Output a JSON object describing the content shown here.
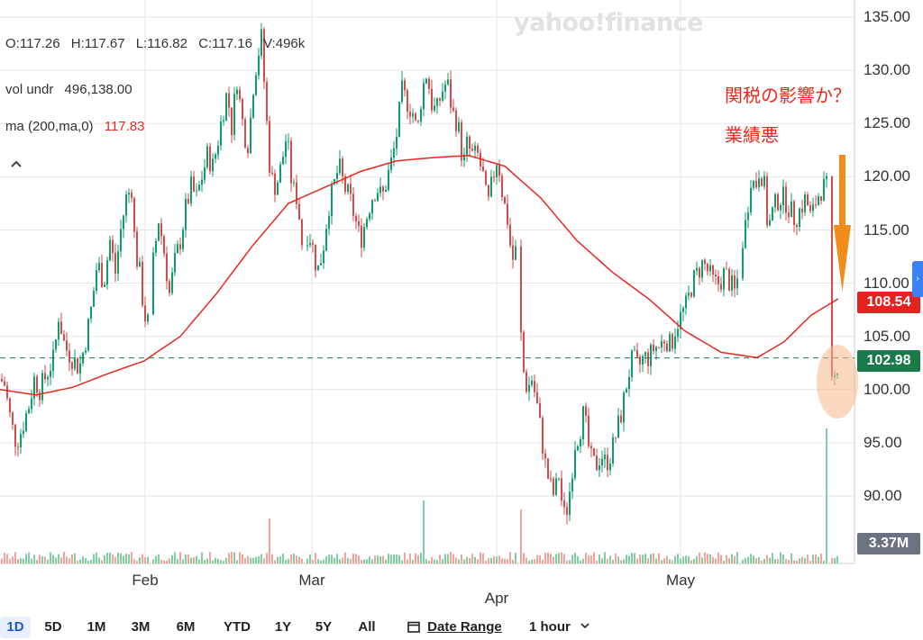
{
  "chart_data": {
    "type": "candlestick",
    "ylim": [
      85,
      136
    ],
    "yticks": [
      "135.00",
      "130.00",
      "125.00",
      "120.00",
      "115.00",
      "110.00",
      "105.00",
      "100.00",
      "95.00",
      "90.00"
    ],
    "xticks": [
      "Feb",
      "Mar",
      "Apr",
      "May"
    ],
    "last_price": "102.98",
    "ma_last": "108.54",
    "volume_last": "3.37M",
    "dashed_level": 102.98,
    "price_path": [
      [
        0,
        101
      ],
      [
        5,
        100.5
      ],
      [
        12,
        97
      ],
      [
        18,
        95
      ],
      [
        23,
        96
      ],
      [
        32,
        98.5
      ],
      [
        38,
        101
      ],
      [
        44,
        100
      ],
      [
        52,
        101.5
      ],
      [
        60,
        103
      ],
      [
        65,
        107
      ],
      [
        72,
        104
      ],
      [
        80,
        103
      ],
      [
        88,
        102
      ],
      [
        96,
        105
      ],
      [
        102,
        108
      ],
      [
        108,
        112
      ],
      [
        115,
        110
      ],
      [
        122,
        114
      ],
      [
        128,
        111
      ],
      [
        134,
        115
      ],
      [
        140,
        118
      ],
      [
        146,
        119
      ],
      [
        150,
        113
      ],
      [
        155,
        111
      ],
      [
        160,
        107
      ],
      [
        166,
        106
      ],
      [
        170,
        112
      ],
      [
        176,
        116
      ],
      [
        182,
        113
      ],
      [
        188,
        109
      ],
      [
        194,
        112
      ],
      [
        200,
        114
      ],
      [
        206,
        117
      ],
      [
        212,
        119
      ],
      [
        218,
        118
      ],
      [
        224,
        120
      ],
      [
        230,
        122
      ],
      [
        236,
        121
      ],
      [
        241,
        123
      ],
      [
        247,
        126
      ],
      [
        252,
        128
      ],
      [
        258,
        124
      ],
      [
        262,
        130
      ],
      [
        266,
        127
      ],
      [
        271,
        124
      ],
      [
        276,
        123
      ],
      [
        280,
        128
      ],
      [
        285,
        131
      ],
      [
        290,
        133
      ],
      [
        296,
        125
      ],
      [
        300,
        120
      ],
      [
        306,
        119
      ],
      [
        312,
        121
      ],
      [
        318,
        124
      ],
      [
        324,
        119
      ],
      [
        330,
        118
      ],
      [
        336,
        113
      ],
      [
        342,
        115
      ],
      [
        348,
        113
      ],
      [
        352,
        111
      ],
      [
        358,
        113
      ],
      [
        364,
        117
      ],
      [
        370,
        119
      ],
      [
        376,
        121
      ],
      [
        382,
        119
      ],
      [
        388,
        118
      ],
      [
        394,
        116
      ],
      [
        400,
        114
      ],
      [
        406,
        116
      ],
      [
        412,
        118
      ],
      [
        418,
        119
      ],
      [
        424,
        118
      ],
      [
        430,
        120
      ],
      [
        436,
        122
      ],
      [
        440,
        124
      ],
      [
        446,
        128
      ],
      [
        452,
        127
      ],
      [
        458,
        126
      ],
      [
        463,
        124
      ],
      [
        468,
        128
      ],
      [
        474,
        130
      ],
      [
        478,
        127
      ],
      [
        484,
        126
      ],
      [
        490,
        128
      ],
      [
        496,
        129
      ],
      [
        502,
        126
      ],
      [
        508,
        125
      ],
      [
        514,
        121
      ],
      [
        518,
        123
      ],
      [
        524,
        122
      ],
      [
        530,
        122
      ],
      [
        536,
        120
      ],
      [
        541,
        117
      ],
      [
        547,
        120
      ],
      [
        552,
        122
      ],
      [
        558,
        118
      ],
      [
        563,
        116
      ],
      [
        568,
        112
      ],
      [
        572,
        113
      ],
      [
        576,
        108
      ],
      [
        580,
        102
      ],
      [
        585,
        100
      ],
      [
        590,
        101
      ],
      [
        595,
        99
      ],
      [
        600,
        96
      ],
      [
        605,
        93
      ],
      [
        610,
        91
      ],
      [
        615,
        90
      ],
      [
        620,
        92
      ],
      [
        625,
        88
      ],
      [
        630,
        89
      ],
      [
        634,
        92
      ],
      [
        638,
        95
      ],
      [
        643,
        96
      ],
      [
        648,
        98
      ],
      [
        652,
        95
      ],
      [
        657,
        93
      ],
      [
        662,
        93
      ],
      [
        667,
        94
      ],
      [
        672,
        93
      ],
      [
        678,
        94
      ],
      [
        684,
        96
      ],
      [
        690,
        98
      ],
      [
        696,
        101
      ],
      [
        702,
        103
      ],
      [
        708,
        102
      ],
      [
        714,
        103
      ],
      [
        720,
        103
      ],
      [
        726,
        104
      ],
      [
        732,
        104
      ],
      [
        738,
        105
      ],
      [
        744,
        104
      ],
      [
        750,
        106
      ],
      [
        756,
        107
      ],
      [
        762,
        108
      ],
      [
        768,
        110
      ],
      [
        774,
        111
      ],
      [
        780,
        112
      ],
      [
        786,
        111
      ],
      [
        792,
        110
      ],
      [
        798,
        110
      ],
      [
        804,
        111
      ],
      [
        810,
        110
      ],
      [
        816,
        109
      ],
      [
        822,
        113
      ],
      [
        828,
        116
      ],
      [
        833,
        120
      ],
      [
        838,
        119
      ],
      [
        843,
        121
      ],
      [
        848,
        119
      ],
      [
        852,
        115
      ],
      [
        858,
        117
      ],
      [
        864,
        118
      ],
      [
        870,
        118
      ],
      [
        876,
        117
      ],
      [
        882,
        116
      ],
      [
        888,
        117
      ],
      [
        894,
        118
      ],
      [
        900,
        116
      ],
      [
        906,
        118
      ],
      [
        912,
        119
      ],
      [
        918,
        119
      ],
      [
        922,
        100
      ],
      [
        926,
        101
      ],
      [
        930,
        102.98
      ]
    ],
    "gaps_after_x": [
      166,
      336,
      572,
      818,
      918
    ],
    "ma_path": [
      [
        0,
        100
      ],
      [
        40,
        99.5
      ],
      [
        80,
        100.2
      ],
      [
        120,
        101.5
      ],
      [
        160,
        102.7
      ],
      [
        200,
        105
      ],
      [
        240,
        109
      ],
      [
        280,
        113.5
      ],
      [
        320,
        117.5
      ],
      [
        360,
        119
      ],
      [
        400,
        120.5
      ],
      [
        440,
        121.5
      ],
      [
        480,
        121.8
      ],
      [
        520,
        122
      ],
      [
        560,
        121
      ],
      [
        600,
        118
      ],
      [
        640,
        114
      ],
      [
        680,
        111
      ],
      [
        720,
        108.5
      ],
      [
        760,
        105.5
      ],
      [
        800,
        103.5
      ],
      [
        840,
        103
      ],
      [
        870,
        104.5
      ],
      [
        900,
        107
      ],
      [
        930,
        108.54
      ]
    ],
    "volume_spikes": [
      [
        298,
        5
      ],
      [
        470,
        7
      ],
      [
        578,
        6
      ],
      [
        822,
        5
      ],
      [
        918,
        15
      ]
    ]
  },
  "ohlc": {
    "open": "O:117.26",
    "high": "H:117.67",
    "low": "L:116.82",
    "close": "C:117.16",
    "volume": "V:496k"
  },
  "indicators": {
    "vol_label": "vol undr",
    "vol_value": "496,138.00",
    "ma_label": "ma (200,ma,0)",
    "ma_value": "117.83"
  },
  "watermark": "yahoo!finance",
  "annotations": [
    "関税の影響か？",
    "業績悪"
  ],
  "toolbar": {
    "ranges": [
      "1D",
      "5D",
      "1M",
      "3M",
      "6M",
      "YTD",
      "1Y",
      "5Y",
      "All"
    ],
    "active_range": "1D",
    "date_range": "Date Range",
    "interval": "1 hour"
  },
  "colors": {
    "up": "#0c9e6b",
    "down": "#d64a4a",
    "ma": "#e8281e",
    "dashed": "#1a7a4a",
    "arrow": "#f28c1a",
    "highlight": "#f6b78a",
    "volume_up": "#7fcfa3",
    "volume_down": "#f2a39a"
  },
  "icons": {
    "collapse": "chevron-up-icon",
    "calendar": "calendar-icon",
    "dropdown": "chevron-down-icon",
    "side_panel": "chevron-right-icon"
  }
}
